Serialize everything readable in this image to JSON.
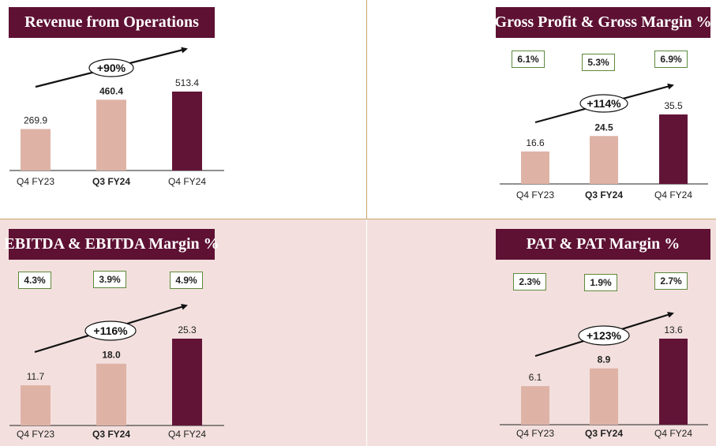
{
  "panels": [
    {
      "title": "Revenue from Operations",
      "growth": "+90%",
      "margins": []
    },
    {
      "title": "Gross Profit & Gross Margin %",
      "growth": "+114%",
      "margins": [
        "6.1%",
        "5.3%",
        "6.9%"
      ]
    },
    {
      "title": "EBITDA & EBITDA Margin %",
      "growth": "+116%",
      "margins": [
        "4.3%",
        "3.9%",
        "4.9%"
      ]
    },
    {
      "title": "PAT & PAT Margin %",
      "growth": "+123%",
      "margins": [
        "2.3%",
        "1.9%",
        "2.7%"
      ]
    }
  ],
  "colors": {
    "title_bg": "#5e1133",
    "bar_light": "#deb3a6",
    "bar_dark": "#621437",
    "panel_pink": "#f3e0de",
    "margin_border": "#5c8a3c"
  },
  "chart_data": [
    {
      "type": "bar",
      "title": "Revenue from Operations",
      "categories": [
        "Q4 FY23",
        "Q3 FY24",
        "Q4 FY24"
      ],
      "values": [
        269.9,
        460.4,
        513.4
      ],
      "data_labels": [
        "269.9",
        "460.4",
        "513.4"
      ],
      "annotation": "+90%"
    },
    {
      "type": "bar",
      "title": "Gross Profit & Gross Margin %",
      "categories": [
        "Q4 FY23",
        "Q3 FY24",
        "Q4 FY24"
      ],
      "values": [
        16.6,
        24.5,
        35.5
      ],
      "data_labels": [
        "16.6",
        "24.5",
        "35.5"
      ],
      "margins": [
        6.1,
        5.3,
        6.9
      ],
      "annotation": "+114%"
    },
    {
      "type": "bar",
      "title": "EBITDA & EBITDA Margin %",
      "categories": [
        "Q4 FY23",
        "Q3 FY24",
        "Q4 FY24"
      ],
      "values": [
        11.7,
        18.0,
        25.3
      ],
      "data_labels": [
        "11.7",
        "18.0",
        "25.3"
      ],
      "margins": [
        4.3,
        3.9,
        4.9
      ],
      "annotation": "+116%"
    },
    {
      "type": "bar",
      "title": "PAT & PAT Margin %",
      "categories": [
        "Q4 FY23",
        "Q3 FY24",
        "Q4 FY24"
      ],
      "values": [
        6.1,
        8.9,
        13.6
      ],
      "data_labels": [
        "6.1",
        "8.9",
        "13.6"
      ],
      "margins": [
        2.3,
        1.9,
        2.7
      ],
      "annotation": "+123%"
    }
  ]
}
